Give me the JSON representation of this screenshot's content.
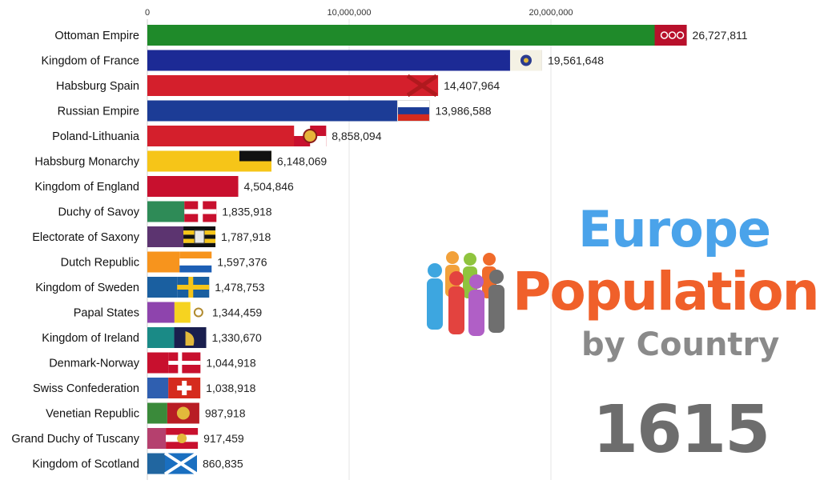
{
  "chart_data": {
    "type": "bar",
    "orientation": "horizontal",
    "categories": [
      "Ottoman Empire",
      "Kingdom of France",
      "Habsburg Spain",
      "Russian Empire",
      "Poland-Lithuania",
      "Habsburg Monarchy",
      "Kingdom of England",
      "Duchy of Savoy",
      "Electorate of Saxony",
      "Dutch Republic",
      "Kingdom of Sweden",
      "Papal States",
      "Kingdom of Ireland",
      "Denmark-Norway",
      "Swiss Confederation",
      "Venetian Republic",
      "Grand Duchy of Tuscany",
      "Kingdom of Scotland"
    ],
    "values": [
      26727811,
      19561648,
      14407964,
      13986588,
      8858094,
      6148069,
      4504846,
      1835918,
      1787918,
      1597376,
      1478753,
      1344459,
      1330670,
      1044918,
      1038918,
      987918,
      917459,
      860835
    ],
    "value_labels": [
      "26,727,811",
      "19,561,648",
      "14,407,964",
      "13,986,588",
      "8,858,094",
      "6,148,069",
      "4,504,846",
      "1,835,918",
      "1,787,918",
      "1,597,376",
      "1,478,753",
      "1,344,459",
      "1,330,670",
      "1,044,918",
      "1,038,918",
      "987,918",
      "917,459",
      "860,835"
    ],
    "colors": [
      "#1f8a2a",
      "#1c2a95",
      "#d41f2c",
      "#1c3c96",
      "#d41f2c",
      "#f6c518",
      "#c8102e",
      "#2e8b57",
      "#5c3470",
      "#f7941d",
      "#1a5fa0",
      "#8e44ad",
      "#1a8a86",
      "#c8102e",
      "#2f5fb0",
      "#3a8a3a",
      "#b5406e",
      "#2166a0"
    ],
    "flag_icons": [
      "ottoman-flag-icon",
      "france-royal-flag-icon",
      "burgundy-cross-flag-icon",
      "russia-flag-icon",
      "poland-lithuania-flag-icon",
      "habsburg-flag-icon",
      "st-george-cross-flag-icon",
      "savoy-flag-icon",
      "saxony-flag-icon",
      "dutch-flag-icon",
      "sweden-flag-icon",
      "papal-flag-icon",
      "ireland-harp-flag-icon",
      "denmark-flag-icon",
      "swiss-flag-icon",
      "venice-flag-icon",
      "tuscany-flag-icon",
      "scotland-flag-icon"
    ],
    "xticks": [
      0,
      10000000,
      20000000
    ],
    "xtick_labels": [
      "0",
      "10,000,000",
      "20,000,000"
    ],
    "xlim": [
      0,
      34000000
    ],
    "grid": true
  },
  "title": {
    "line1": "Europe",
    "line2": "Population",
    "line3": "by Country",
    "year": "1615",
    "colors": {
      "line1": "#4aa3ea",
      "line2": "#f0602a",
      "line3": "#8a8a8a",
      "year": "#6d6d6d"
    }
  },
  "people_icon": "people-group-icon"
}
